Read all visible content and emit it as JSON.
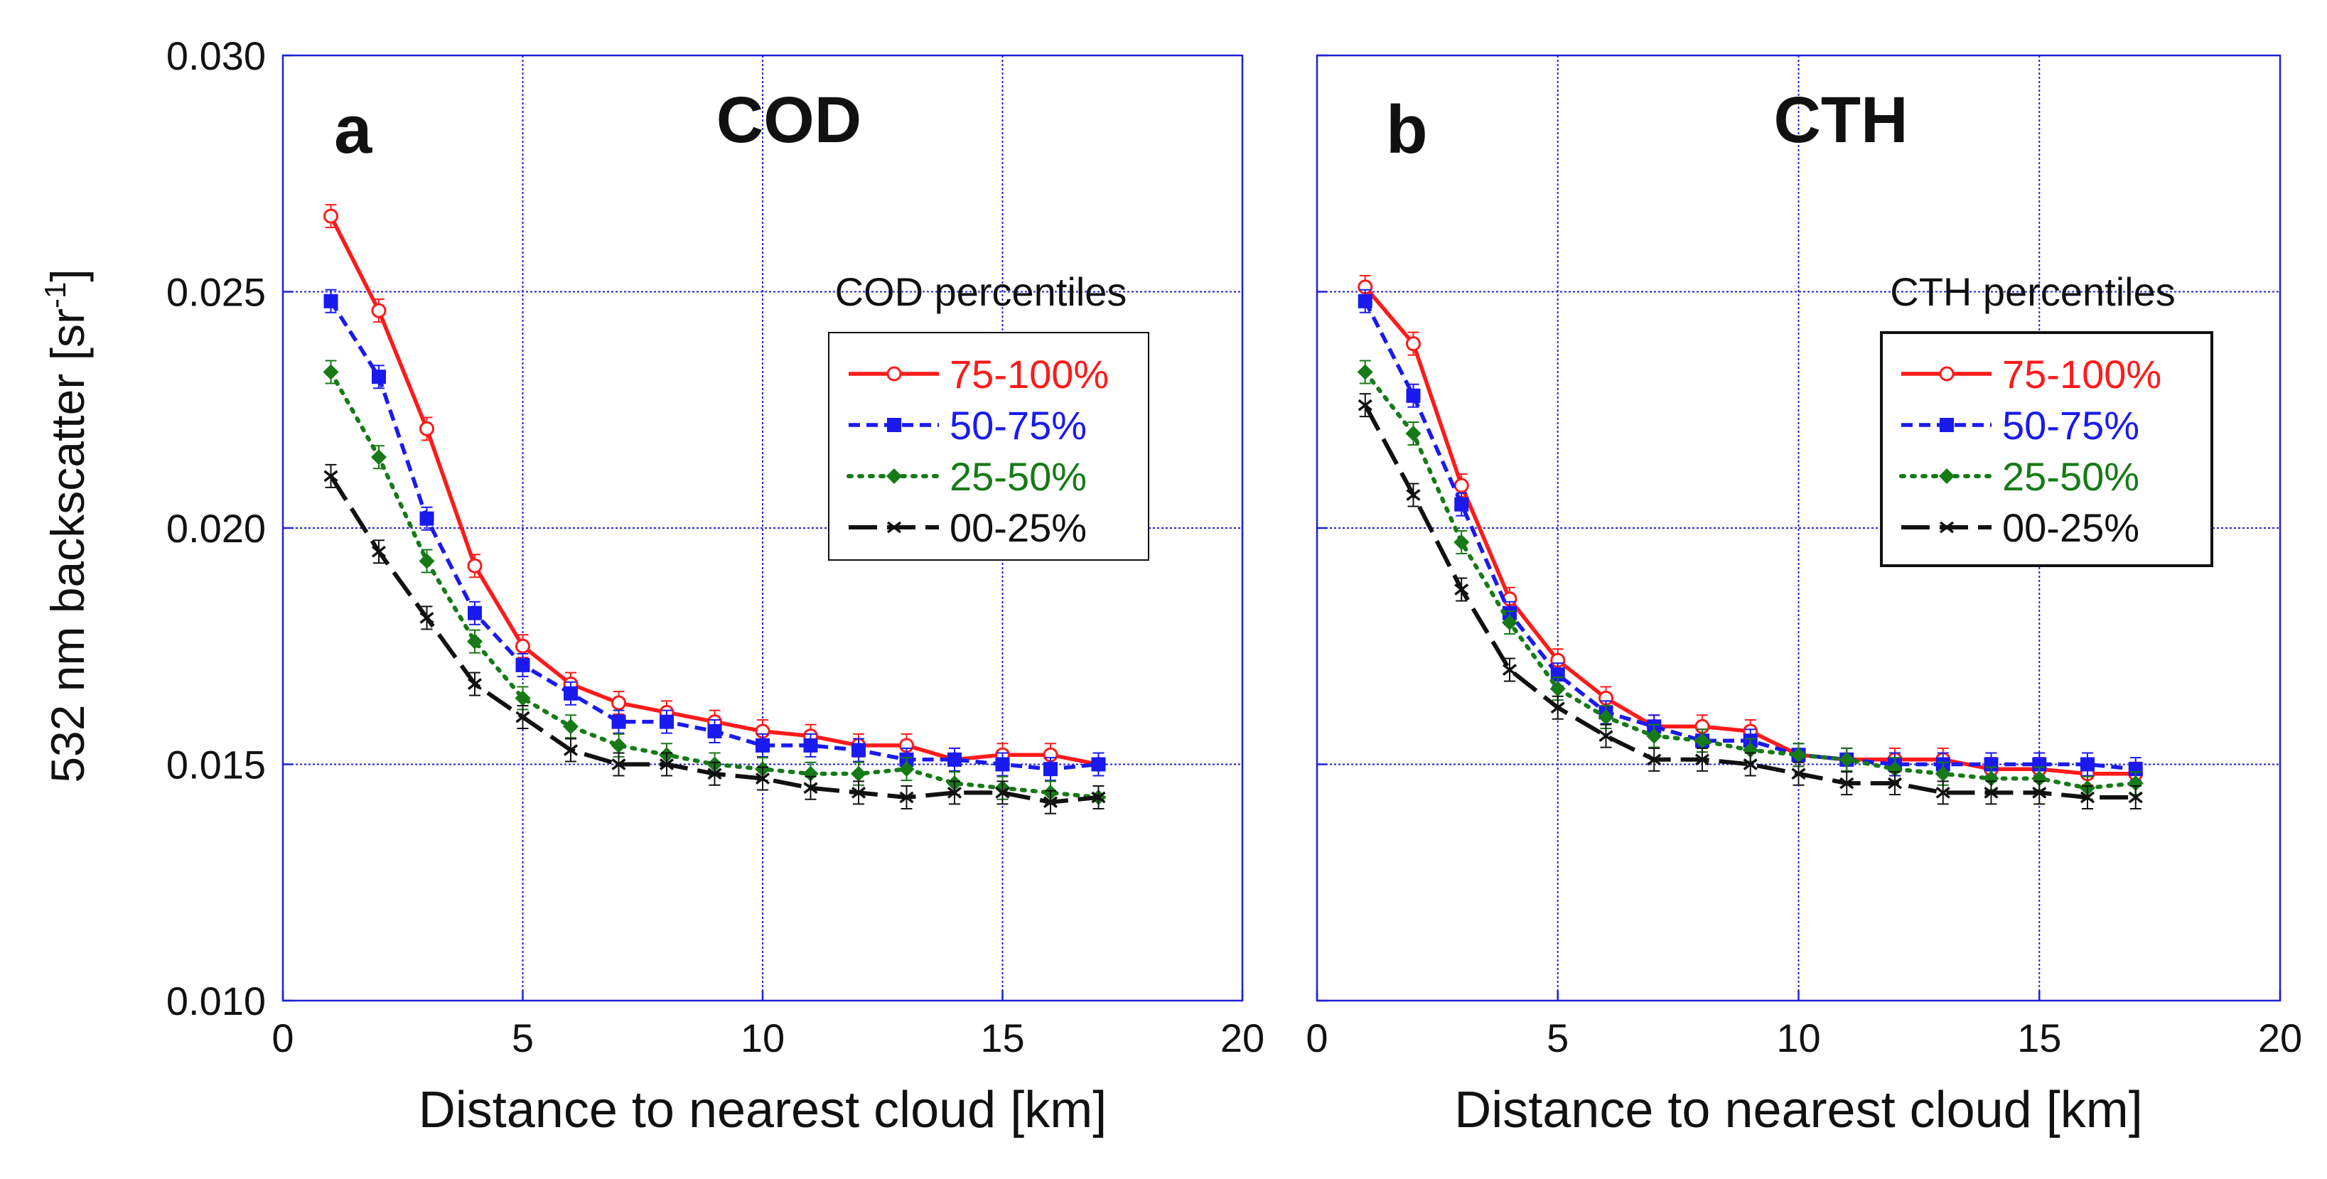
{
  "figure": {
    "ylabel_main": "532 nm backscatter [sr",
    "ylabel_sup": "-1",
    "ylabel_close": "]"
  },
  "colors": {
    "grid": "#1f1fd6",
    "frame": "#1f1fd6",
    "75-100%": "#ff1a1a",
    "50-75%": "#1a1aee",
    "25-50%": "#167a16",
    "00-25%": "#111111"
  },
  "chart_data": [
    {
      "type": "line",
      "panel_letter": "a",
      "title": "COD",
      "xlabel": "Distance to nearest cloud [km]",
      "ylabel": "532 nm backscatter [sr-1]",
      "xlim": [
        0,
        20
      ],
      "ylim": [
        0.01,
        0.03
      ],
      "xticks": [
        "0",
        "5",
        "10",
        "15",
        "20"
      ],
      "yticks": [
        "0.010",
        "0.015",
        "0.020",
        "0.025",
        "0.030"
      ],
      "grid": true,
      "legend_title": "COD percentiles",
      "legend_position": "upper-right",
      "x": [
        1,
        2,
        3,
        4,
        5,
        6,
        7,
        8,
        9,
        10,
        11,
        12,
        13,
        14,
        15,
        16,
        17
      ],
      "series": [
        {
          "name": "75-100%",
          "marker": "open-circle",
          "linestyle": "solid",
          "values": [
            0.0266,
            0.0246,
            0.0221,
            0.0192,
            0.0175,
            0.0167,
            0.0163,
            0.0161,
            0.0159,
            0.0157,
            0.0156,
            0.0154,
            0.0154,
            0.0151,
            0.0152,
            0.0152,
            0.015
          ]
        },
        {
          "name": "50-75%",
          "marker": "square",
          "linestyle": "dashed",
          "values": [
            0.0248,
            0.0232,
            0.0202,
            0.0182,
            0.0171,
            0.0165,
            0.0159,
            0.0159,
            0.0157,
            0.0154,
            0.0154,
            0.0153,
            0.0151,
            0.0151,
            0.015,
            0.0149,
            0.015
          ]
        },
        {
          "name": "25-50%",
          "marker": "diamond",
          "linestyle": "dotted",
          "values": [
            0.0233,
            0.0215,
            0.0193,
            0.0176,
            0.0164,
            0.0158,
            0.0154,
            0.0152,
            0.015,
            0.0149,
            0.0148,
            0.0148,
            0.0149,
            0.0146,
            0.0145,
            0.0144,
            0.0143
          ]
        },
        {
          "name": "00-25%",
          "marker": "cross",
          "linestyle": "long-dash",
          "values": [
            0.0211,
            0.0195,
            0.0181,
            0.0167,
            0.016,
            0.0153,
            0.015,
            0.015,
            0.0148,
            0.0147,
            0.0145,
            0.0144,
            0.0143,
            0.0144,
            0.0144,
            0.0142,
            0.0143
          ]
        }
      ]
    },
    {
      "type": "line",
      "panel_letter": "b",
      "title": "CTH",
      "xlabel": "Distance to nearest cloud [km]",
      "ylabel": "",
      "xlim": [
        0,
        20
      ],
      "ylim": [
        0.01,
        0.03
      ],
      "xticks": [
        "0",
        "5",
        "10",
        "15",
        "20"
      ],
      "yticks": [],
      "grid": true,
      "legend_title": "CTH percentiles",
      "legend_position": "upper-right",
      "x": [
        1,
        2,
        3,
        4,
        5,
        6,
        7,
        8,
        9,
        10,
        11,
        12,
        13,
        14,
        15,
        16,
        17
      ],
      "series": [
        {
          "name": "75-100%",
          "marker": "open-circle",
          "linestyle": "solid",
          "values": [
            0.0251,
            0.0239,
            0.0209,
            0.0185,
            0.0172,
            0.0164,
            0.0158,
            0.0158,
            0.0157,
            0.0152,
            0.0151,
            0.0151,
            0.0151,
            0.0149,
            0.0149,
            0.0148,
            0.0148
          ]
        },
        {
          "name": "50-75%",
          "marker": "square",
          "linestyle": "dashed",
          "values": [
            0.0248,
            0.0228,
            0.0205,
            0.0182,
            0.0169,
            0.0161,
            0.0158,
            0.0155,
            0.0155,
            0.0152,
            0.0151,
            0.015,
            0.015,
            0.015,
            0.015,
            0.015,
            0.0149
          ]
        },
        {
          "name": "25-50%",
          "marker": "diamond",
          "linestyle": "dotted",
          "values": [
            0.0233,
            0.022,
            0.0197,
            0.018,
            0.0166,
            0.016,
            0.0156,
            0.0155,
            0.0153,
            0.0152,
            0.0151,
            0.0149,
            0.0148,
            0.0147,
            0.0147,
            0.0145,
            0.0146
          ]
        },
        {
          "name": "00-25%",
          "marker": "cross",
          "linestyle": "long-dash",
          "values": [
            0.0226,
            0.0207,
            0.0187,
            0.017,
            0.0162,
            0.0156,
            0.0151,
            0.0151,
            0.015,
            0.0148,
            0.0146,
            0.0146,
            0.0144,
            0.0144,
            0.0144,
            0.0143,
            0.0143
          ]
        }
      ]
    }
  ]
}
